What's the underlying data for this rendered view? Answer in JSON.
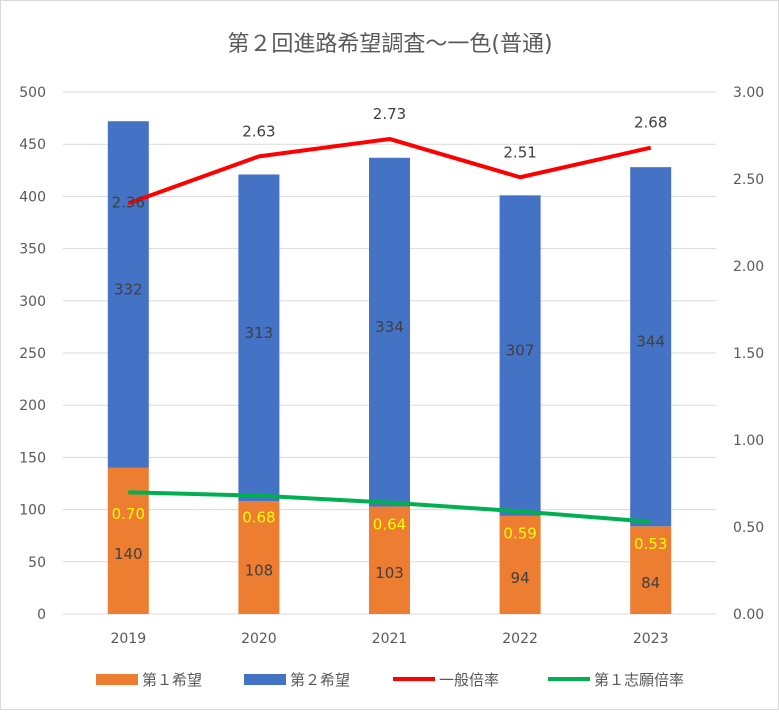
{
  "chart_data": {
    "type": "bar+line",
    "title": "第２回進路希望調査～一色(普通)",
    "categories": [
      "2019",
      "2020",
      "2021",
      "2022",
      "2023"
    ],
    "stacked": true,
    "series": [
      {
        "name": "第１希望",
        "type": "bar",
        "axis": "left",
        "color": "#ED7D31",
        "values": [
          140,
          108,
          103,
          94,
          84
        ]
      },
      {
        "name": "第２希望",
        "type": "bar",
        "axis": "left",
        "color": "#4472C4",
        "values": [
          332,
          313,
          334,
          307,
          344
        ]
      },
      {
        "name": "一般倍率",
        "type": "line",
        "axis": "right",
        "color": "#FF0000",
        "values": [
          2.36,
          2.63,
          2.73,
          2.51,
          2.68
        ],
        "labels": [
          "2.36",
          "2.63",
          "2.73",
          "2.51",
          "2.68"
        ]
      },
      {
        "name": "第１志願倍率",
        "type": "line",
        "axis": "right",
        "color": "#00B050",
        "values": [
          0.7,
          0.68,
          0.64,
          0.59,
          0.53
        ],
        "labels": [
          "0.70",
          "0.68",
          "0.64",
          "0.59",
          "0.53"
        ],
        "label_color": "#FFFF00"
      }
    ],
    "ylim": [
      0,
      500
    ],
    "yticks": [
      "0",
      "50",
      "100",
      "150",
      "200",
      "250",
      "300",
      "350",
      "400",
      "450",
      "500"
    ],
    "y2lim": [
      0,
      3
    ],
    "y2ticks": [
      "0.00",
      "0.50",
      "1.00",
      "1.50",
      "2.00",
      "2.50",
      "3.00"
    ],
    "grid": true,
    "legend": "bottom"
  }
}
